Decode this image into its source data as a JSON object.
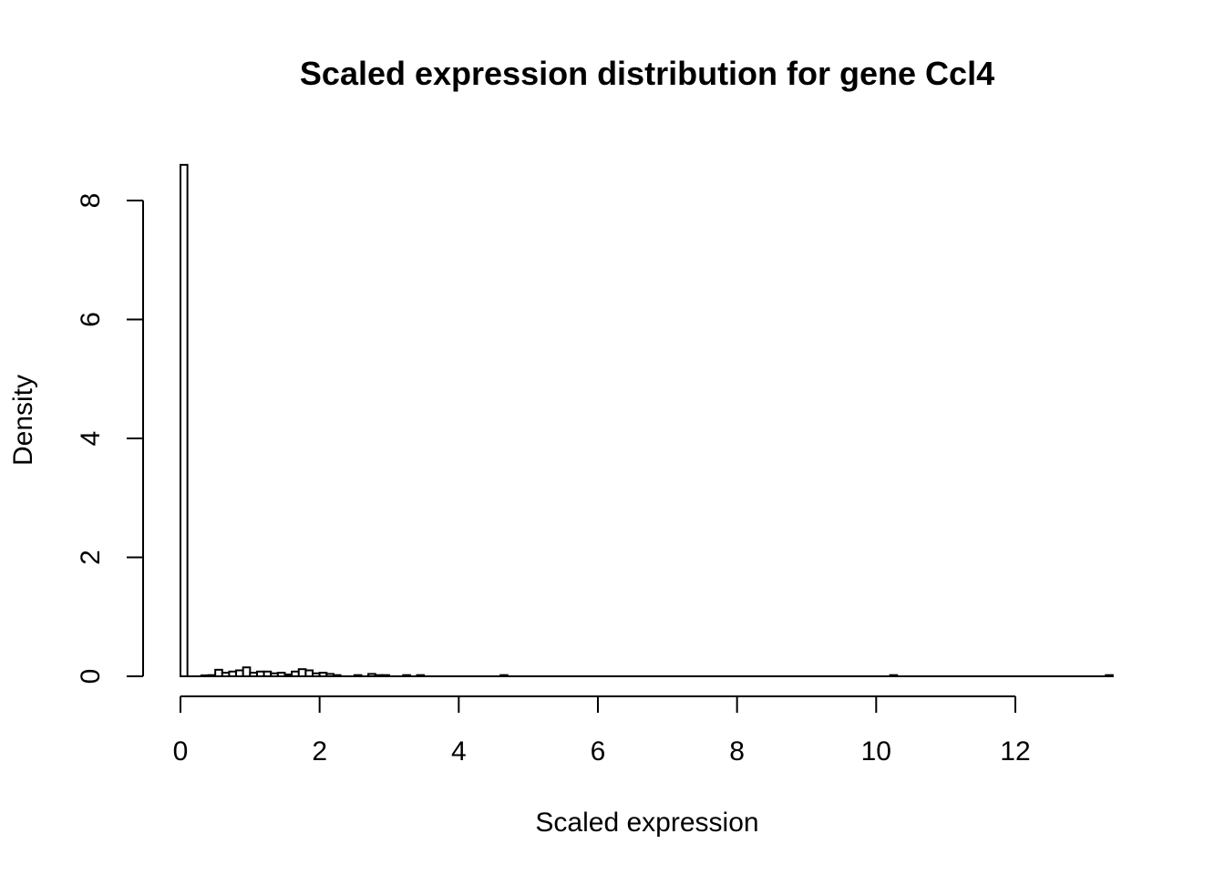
{
  "chart_data": {
    "type": "bar",
    "title": "Scaled expression distribution for gene Ccl4",
    "xlabel": "Scaled expression",
    "ylabel": "Density",
    "xlim": [
      0,
      13.4
    ],
    "ylim": [
      0,
      8.6
    ],
    "x_ticks": [
      0,
      2,
      4,
      6,
      8,
      10,
      12
    ],
    "y_ticks": [
      0,
      2,
      4,
      6,
      8
    ],
    "bin_width": 0.1,
    "series": [
      {
        "bins": [
          {
            "x0": 0.0,
            "x1": 0.1,
            "density": 8.6
          },
          {
            "x0": 0.3,
            "x1": 0.4,
            "density": 0.01
          },
          {
            "x0": 0.4,
            "x1": 0.5,
            "density": 0.02
          },
          {
            "x0": 0.5,
            "x1": 0.6,
            "density": 0.11
          },
          {
            "x0": 0.6,
            "x1": 0.7,
            "density": 0.06
          },
          {
            "x0": 0.7,
            "x1": 0.8,
            "density": 0.08
          },
          {
            "x0": 0.8,
            "x1": 0.9,
            "density": 0.1
          },
          {
            "x0": 0.9,
            "x1": 1.0,
            "density": 0.15
          },
          {
            "x0": 1.0,
            "x1": 1.1,
            "density": 0.06
          },
          {
            "x0": 1.1,
            "x1": 1.2,
            "density": 0.08
          },
          {
            "x0": 1.2,
            "x1": 1.3,
            "density": 0.08
          },
          {
            "x0": 1.3,
            "x1": 1.4,
            "density": 0.05
          },
          {
            "x0": 1.4,
            "x1": 1.5,
            "density": 0.06
          },
          {
            "x0": 1.5,
            "x1": 1.6,
            "density": 0.03
          },
          {
            "x0": 1.6,
            "x1": 1.7,
            "density": 0.08
          },
          {
            "x0": 1.7,
            "x1": 1.8,
            "density": 0.12
          },
          {
            "x0": 1.8,
            "x1": 1.9,
            "density": 0.1
          },
          {
            "x0": 1.9,
            "x1": 2.0,
            "density": 0.05
          },
          {
            "x0": 2.0,
            "x1": 2.1,
            "density": 0.06
          },
          {
            "x0": 2.1,
            "x1": 2.2,
            "density": 0.04
          },
          {
            "x0": 2.2,
            "x1": 2.3,
            "density": 0.02
          },
          {
            "x0": 2.5,
            "x1": 2.6,
            "density": 0.02
          },
          {
            "x0": 2.7,
            "x1": 2.8,
            "density": 0.04
          },
          {
            "x0": 2.8,
            "x1": 2.9,
            "density": 0.02
          },
          {
            "x0": 2.9,
            "x1": 3.0,
            "density": 0.02
          },
          {
            "x0": 3.2,
            "x1": 3.3,
            "density": 0.02
          },
          {
            "x0": 3.4,
            "x1": 3.5,
            "density": 0.02
          },
          {
            "x0": 4.6,
            "x1": 4.7,
            "density": 0.02
          },
          {
            "x0": 10.2,
            "x1": 10.3,
            "density": 0.02
          },
          {
            "x0": 13.3,
            "x1": 13.4,
            "density": 0.02
          }
        ]
      }
    ]
  }
}
